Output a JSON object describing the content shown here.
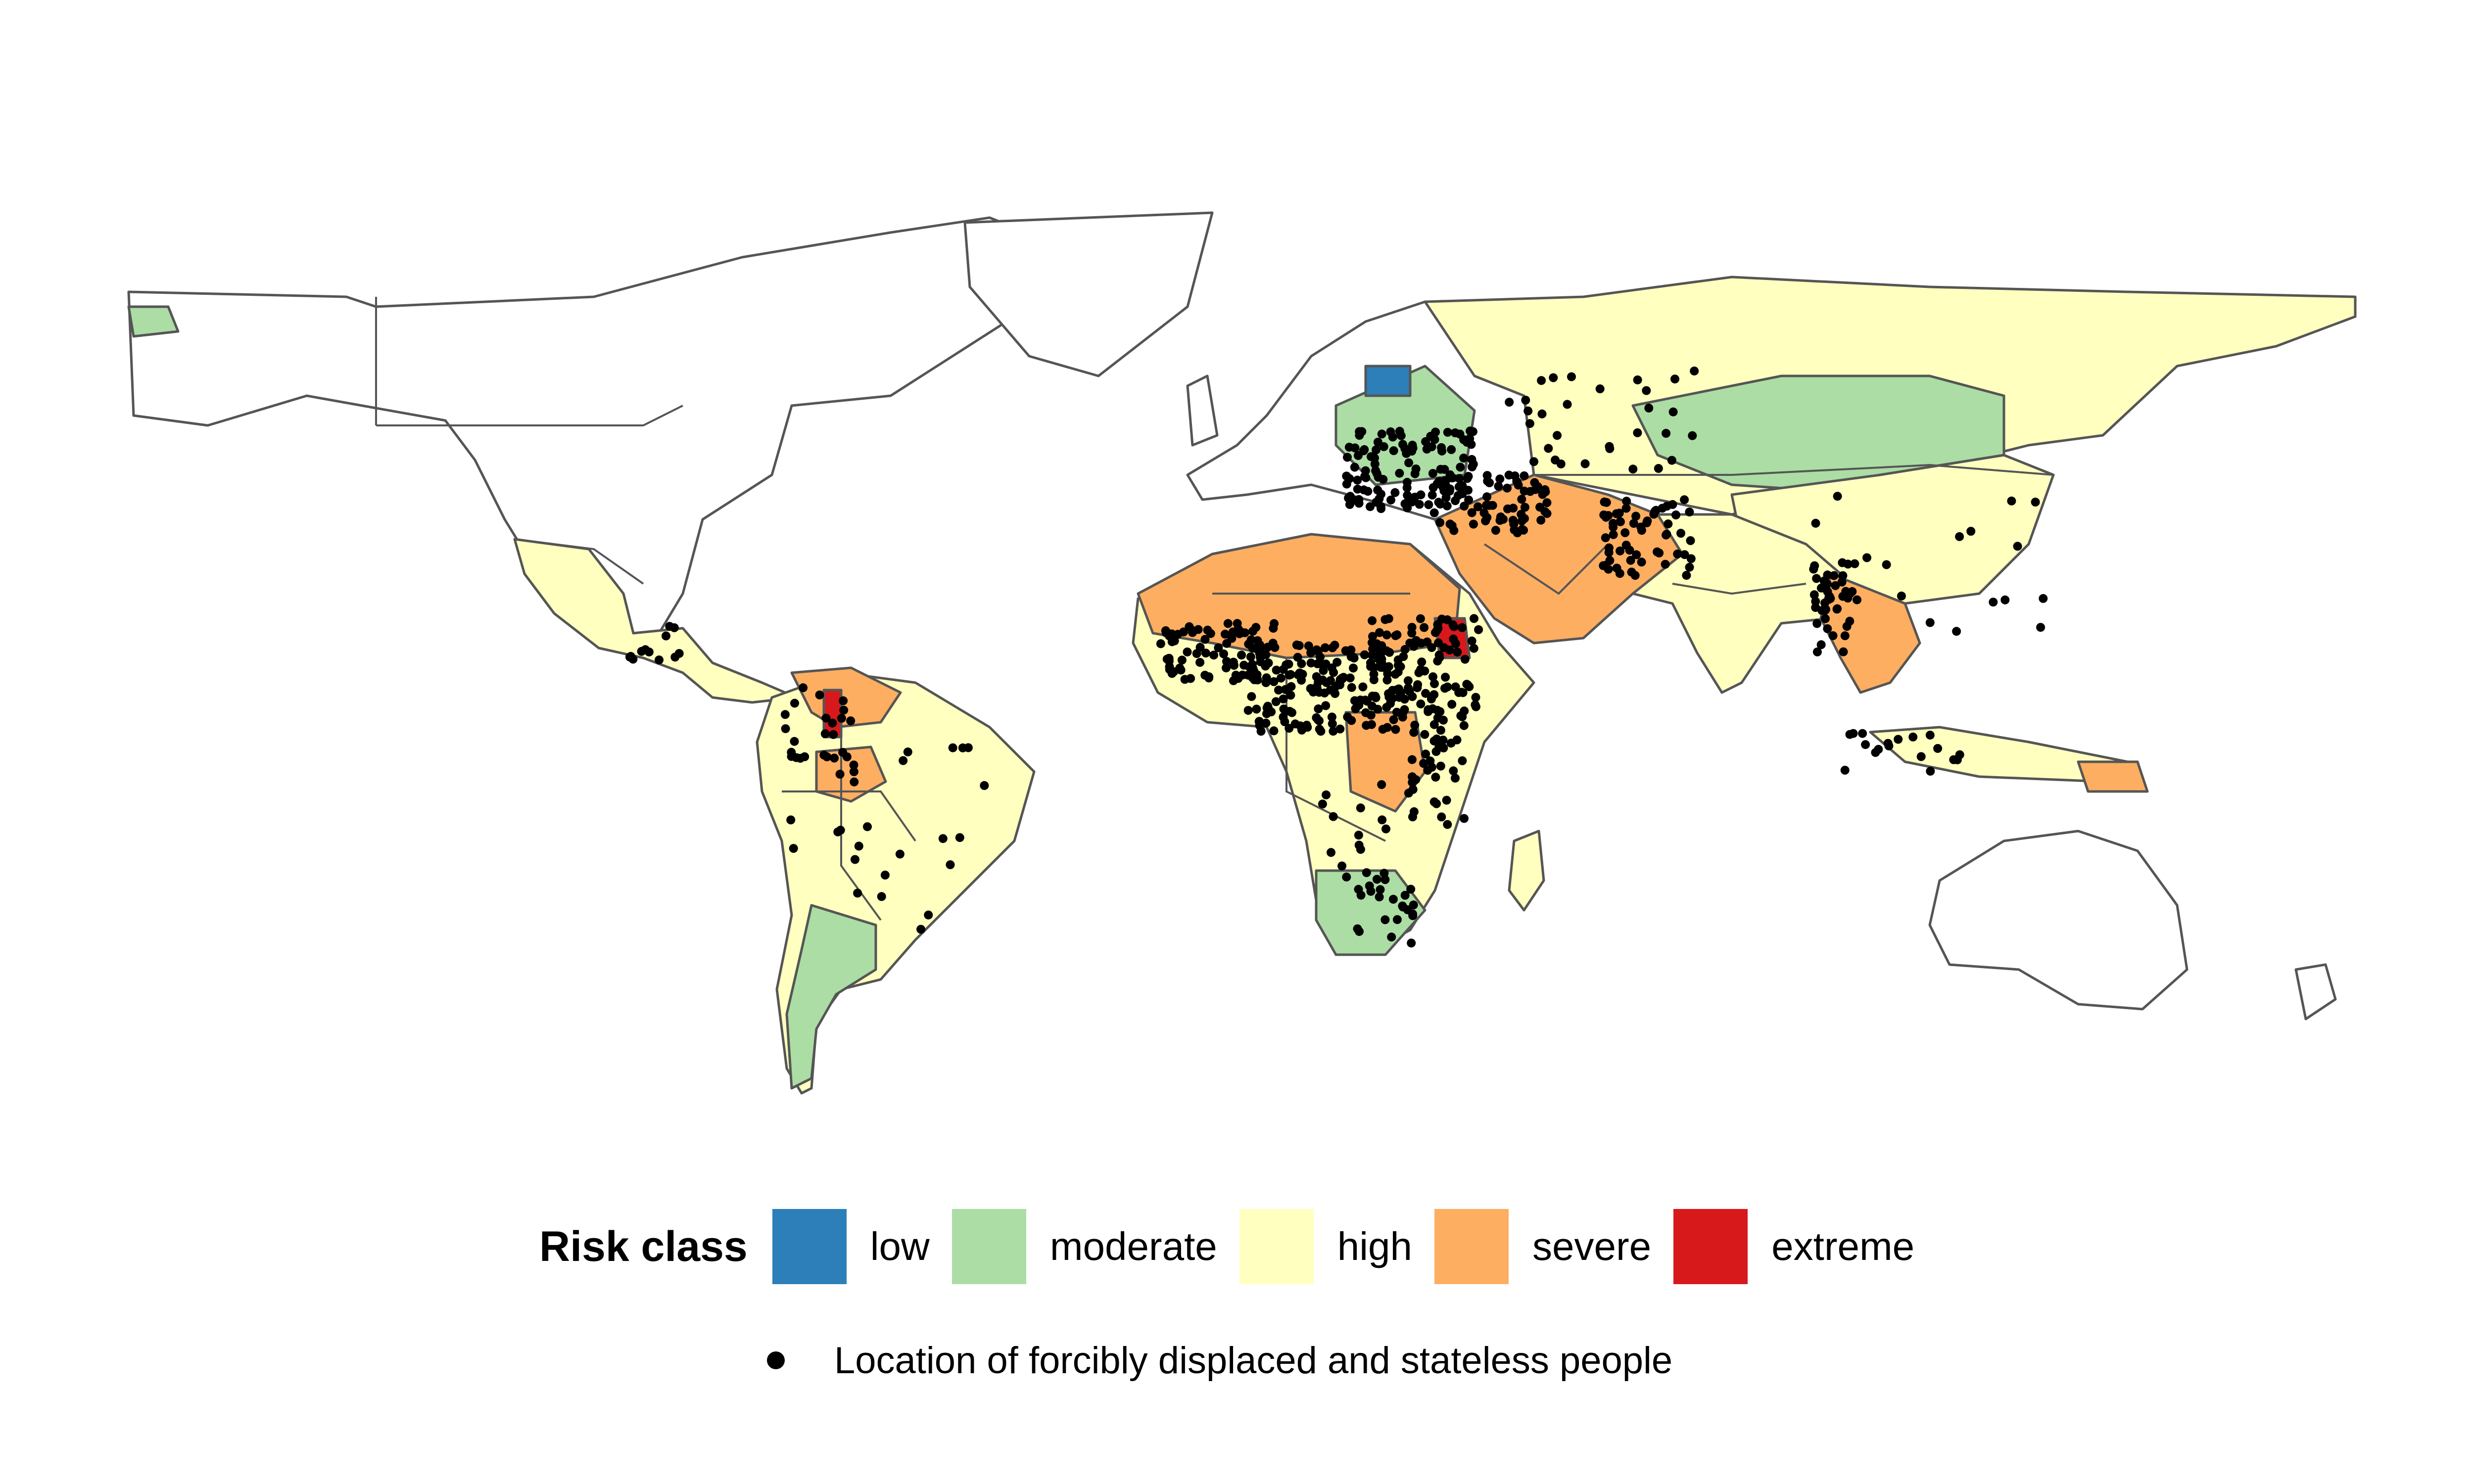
{
  "legend": {
    "title": "Risk class",
    "classes": [
      {
        "label": "low",
        "color": "#2c7fb8"
      },
      {
        "label": "moderate",
        "color": "#abdda4"
      },
      {
        "label": "high",
        "color": "#ffffbf"
      },
      {
        "label": "severe",
        "color": "#fdae61"
      },
      {
        "label": "extreme",
        "color": "#d7191c"
      }
    ]
  },
  "points_legend": {
    "label": "Location of forcibly displaced and stateless people",
    "color": "#000000"
  }
}
